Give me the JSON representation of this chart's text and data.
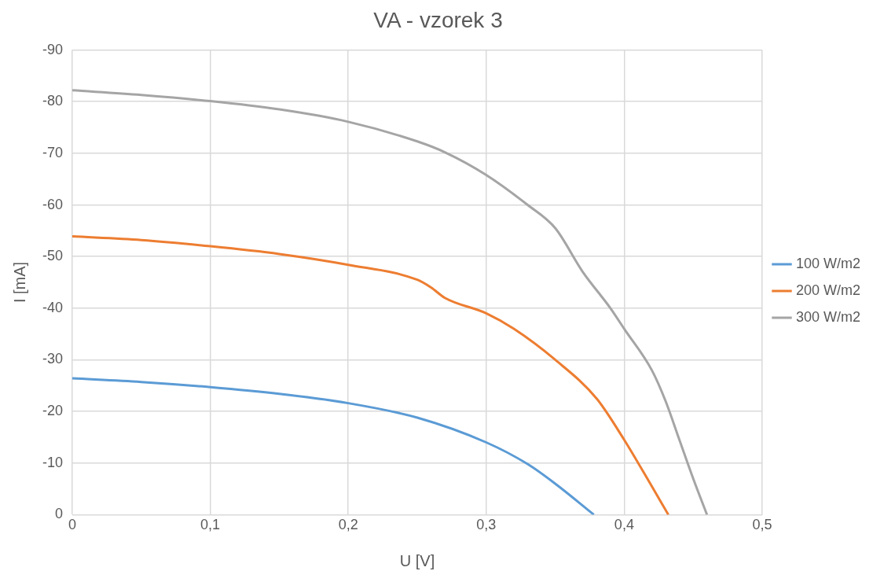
{
  "chart_data": {
    "type": "line",
    "title": "VA - vzorek 3",
    "xlabel": "U [V]",
    "ylabel": "I [mA]",
    "xlim": [
      0,
      0.5
    ],
    "xticks": [
      0,
      {
        "value": 0.1,
        "label": "0,1"
      },
      {
        "value": 0.2,
        "label": "0,2"
      },
      {
        "value": 0.3,
        "label": "0,3"
      },
      {
        "value": 0.4,
        "label": "0,4"
      },
      {
        "value": 0.5,
        "label": "0,5"
      }
    ],
    "ylim": [
      0,
      -90
    ],
    "yticks": [
      0,
      -10,
      -20,
      -30,
      -40,
      -50,
      -60,
      -70,
      -80,
      -90
    ],
    "grid": true,
    "legend": "right",
    "marker": "none",
    "line_style": "solid",
    "series": [
      {
        "name": "100 W/m2",
        "color": "#5b9bd5",
        "x": [
          0,
          0.05,
          0.1,
          0.15,
          0.2,
          0.25,
          0.3,
          0.33,
          0.35,
          0.378
        ],
        "values": [
          -26.4,
          -25.7,
          -24.7,
          -23.4,
          -21.6,
          -18.8,
          -14,
          -9.8,
          -6,
          0
        ]
      },
      {
        "name": "200 W/m2",
        "color": "#ed7d31",
        "x": [
          0,
          0.05,
          0.1,
          0.15,
          0.2,
          0.25,
          0.26,
          0.27,
          0.3,
          0.32,
          0.35,
          0.38,
          0.4,
          0.42,
          0.432
        ],
        "values": [
          -53.9,
          -53.2,
          -52,
          -50.5,
          -48.4,
          -45.5,
          -44,
          -42,
          -39,
          -36,
          -30,
          -22.5,
          -14.5,
          -5.5,
          0
        ]
      },
      {
        "name": "300 W/m2",
        "color": "#a5a5a5",
        "x": [
          0,
          0.05,
          0.1,
          0.15,
          0.2,
          0.25,
          0.27,
          0.3,
          0.33,
          0.35,
          0.37,
          0.39,
          0.4,
          0.42,
          0.43,
          0.44,
          0.45,
          0.46
        ],
        "values": [
          -82.2,
          -81.3,
          -80.1,
          -78.5,
          -76.1,
          -72.3,
          -70.2,
          -65.8,
          -60,
          -55.5,
          -47,
          -40,
          -36,
          -28,
          -22,
          -14.5,
          -7,
          0
        ]
      }
    ]
  }
}
